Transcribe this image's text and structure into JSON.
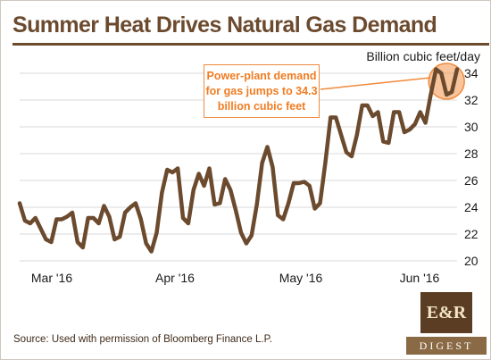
{
  "chart_data": {
    "type": "line",
    "title": "Summer Heat Drives Natural Gas Demand",
    "ylabel": "Billion cubic feet/day",
    "ylim": [
      20,
      34
    ],
    "yticks": [
      20,
      22,
      24,
      26,
      28,
      30,
      32,
      34
    ],
    "xlabel": "",
    "xticks": [
      "Mar '16",
      "Apr '16",
      "May '16",
      "Jun '16"
    ],
    "grid": "horizontal",
    "series": [
      {
        "color": "#6b4a2e",
        "values": [
          24.3,
          23.0,
          22.8,
          23.2,
          22.4,
          21.6,
          21.4,
          23.1,
          23.1,
          23.3,
          23.6,
          21.4,
          21.0,
          23.2,
          23.2,
          22.8,
          24.1,
          23.3,
          21.6,
          21.8,
          23.6,
          24.0,
          24.3,
          23.1,
          21.3,
          20.7,
          22.1,
          25.1,
          26.8,
          26.6,
          26.9,
          23.2,
          22.8,
          25.3,
          26.5,
          25.6,
          26.9,
          24.2,
          24.3,
          26.1,
          25.3,
          23.8,
          22.1,
          21.3,
          21.9,
          24.2,
          27.3,
          28.5,
          27.0,
          23.4,
          23.1,
          24.3,
          25.8,
          25.8,
          25.9,
          25.6,
          23.9,
          24.3,
          27.3,
          30.7,
          30.7,
          29.4,
          28.1,
          27.8,
          29.4,
          31.6,
          31.6,
          30.8,
          31.1,
          28.9,
          28.8,
          31.1,
          31.1,
          29.6,
          29.8,
          30.2,
          31.1,
          30.3,
          32.4,
          34.3,
          34.0,
          32.4,
          32.6,
          34.3
        ]
      }
    ],
    "annotation": {
      "text": "Power-plant demand\nfor gas jumps to 34.3\nbillion cubic feet",
      "value": 34.3,
      "color": "#f07d23"
    }
  },
  "source": "Source: Used with permission of Bloomberg Finance L.P.",
  "logo": {
    "top": "E&R",
    "bottom": "DIGEST"
  },
  "colors": {
    "brand_brown": "#6b4a2e",
    "accent_orange": "#f07d23",
    "grid": "#d9d9d9"
  }
}
